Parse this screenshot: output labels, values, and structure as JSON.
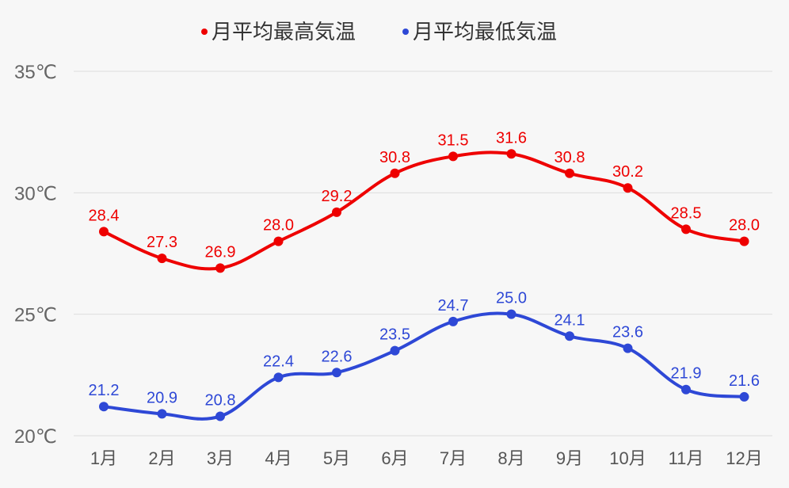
{
  "chart_data": {
    "type": "line",
    "title": "",
    "xlabel": "",
    "ylabel": "",
    "categories": [
      "1月",
      "2月",
      "3月",
      "4月",
      "5月",
      "6月",
      "7月",
      "8月",
      "9月",
      "10月",
      "11月",
      "12月"
    ],
    "series": [
      {
        "name": "月平均最高気温",
        "color": "#ee0000",
        "values": [
          28.4,
          27.3,
          26.9,
          28.0,
          29.2,
          30.8,
          31.5,
          31.6,
          30.8,
          30.2,
          28.5,
          28.0
        ],
        "labels": [
          "28.4",
          "27.3",
          "26.9",
          "28.0",
          "29.2",
          "30.8",
          "31.5",
          "31.6",
          "30.8",
          "30.2",
          "28.5",
          "28.0"
        ]
      },
      {
        "name": "月平均最低気温",
        "color": "#2e48d6",
        "values": [
          21.2,
          20.9,
          20.8,
          22.4,
          22.6,
          23.5,
          24.7,
          25.0,
          24.1,
          23.6,
          21.9,
          21.6
        ],
        "labels": [
          "21.2",
          "20.9",
          "20.8",
          "22.4",
          "22.6",
          "23.5",
          "24.7",
          "25.0",
          "24.1",
          "23.6",
          "21.9",
          "21.6"
        ]
      }
    ],
    "y_ticks": [
      20,
      25,
      30,
      35
    ],
    "y_tick_labels": [
      "20℃",
      "25℃",
      "30℃",
      "35℃"
    ],
    "ylim": [
      20,
      35
    ],
    "grid": true,
    "legend_position": "top-center"
  }
}
